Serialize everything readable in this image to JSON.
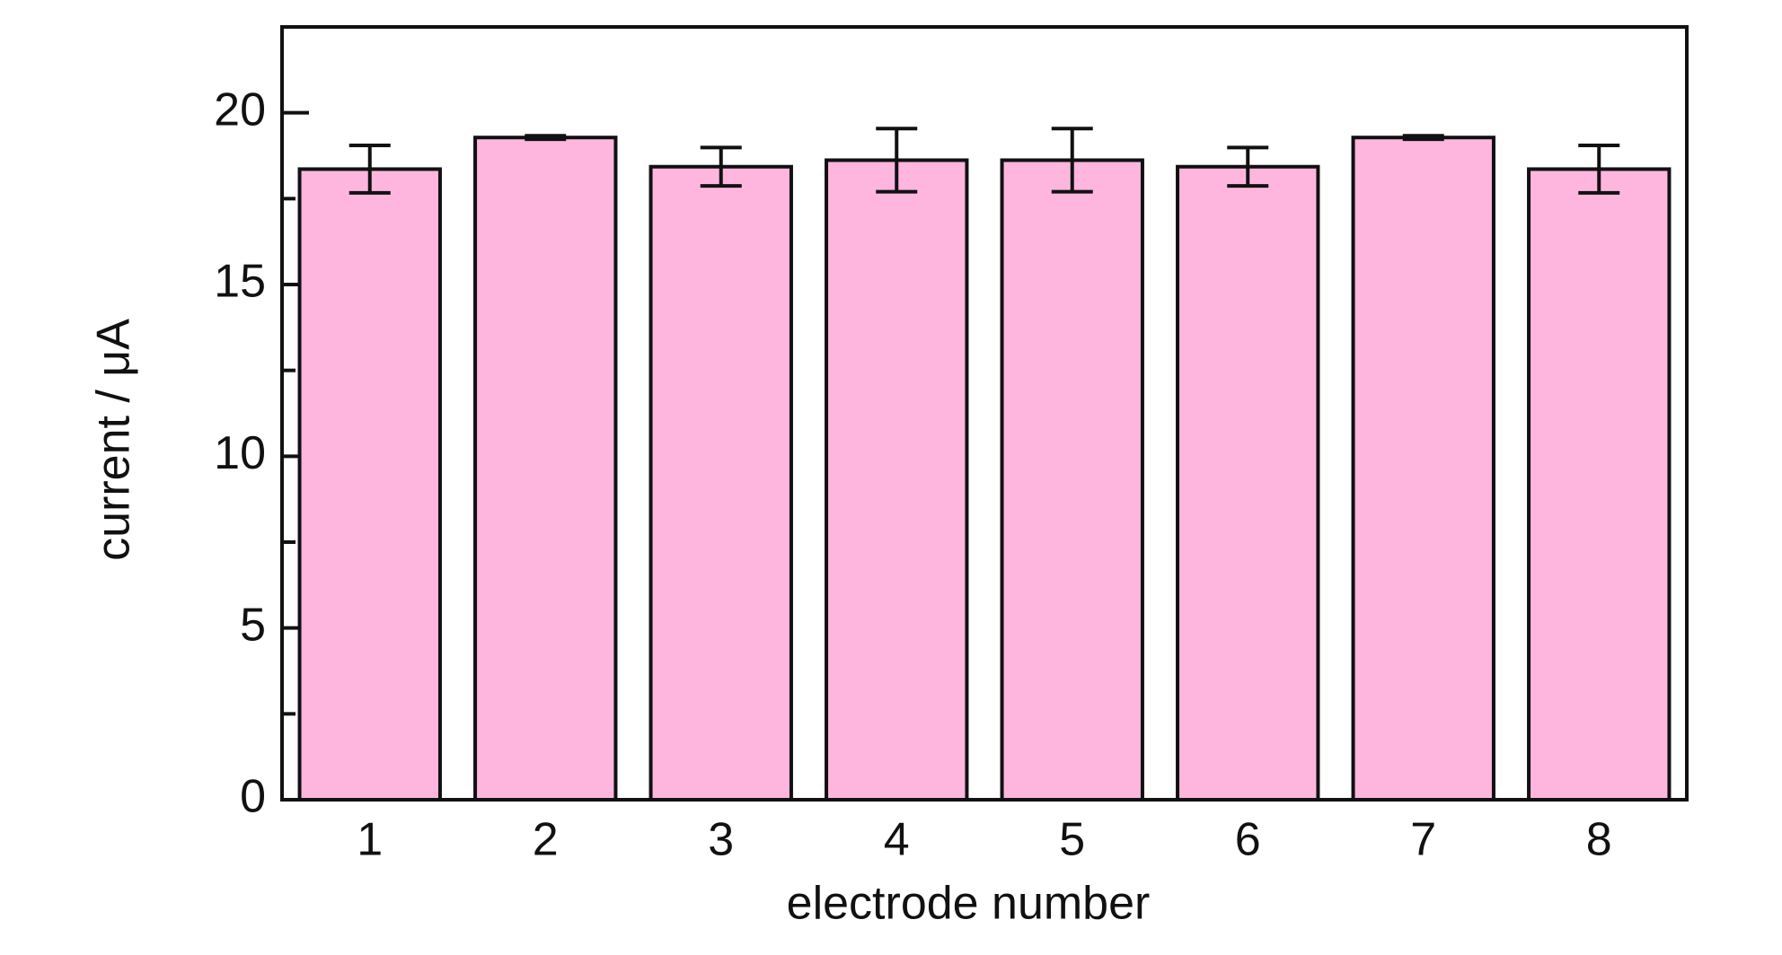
{
  "chart_data": {
    "type": "bar",
    "xlabel": "electrode number",
    "ylabel": "current / μA",
    "categories": [
      "1",
      "2",
      "3",
      "4",
      "5",
      "6",
      "7",
      "8"
    ],
    "values": [
      18.36,
      19.28,
      18.43,
      18.62,
      18.62,
      18.43,
      19.28,
      18.36
    ],
    "errors": [
      0.69,
      0.05,
      0.56,
      0.92,
      0.92,
      0.56,
      0.05,
      0.69
    ],
    "color": "#ffb6de",
    "ylim": [
      0,
      22.5
    ],
    "yticks": [
      0,
      5,
      10,
      15,
      20
    ],
    "yminor_ticks": [
      2.5,
      7.5,
      12.5,
      17.5
    ],
    "grid": false
  }
}
